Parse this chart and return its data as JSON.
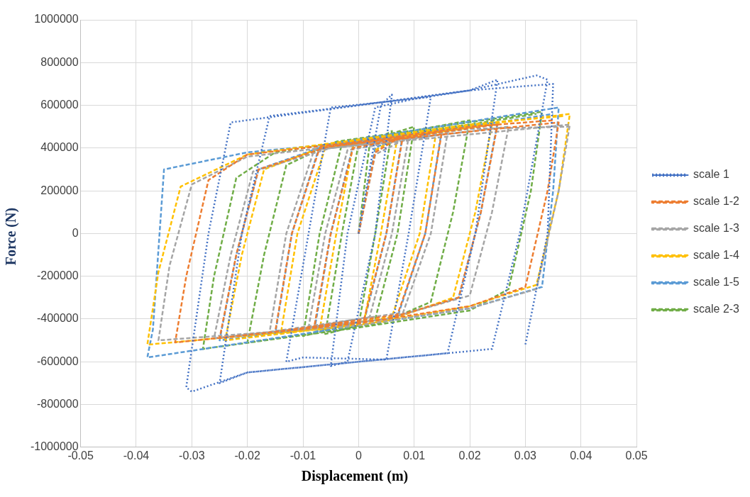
{
  "chart_data": {
    "type": "line",
    "xlabel": "Displacement (m)",
    "ylabel": "Force (N)",
    "xlim": [
      -0.05,
      0.05
    ],
    "xticks": [
      -0.05,
      -0.04,
      -0.03,
      -0.02,
      -0.01,
      0,
      0.01,
      0.02,
      0.03,
      0.04,
      0.05
    ],
    "ylim": [
      -1000000,
      1000000
    ],
    "yticks": [
      -1000000,
      -800000,
      -600000,
      -400000,
      -200000,
      0,
      200000,
      400000,
      600000,
      800000,
      1000000
    ],
    "grid": true,
    "legend": "right",
    "marker": "none",
    "series": [
      {
        "name": "scale 1",
        "color": "#4472c4",
        "line_style": "dotted",
        "x": [
          0,
          0.004,
          0.006,
          0.003,
          -0.002,
          -0.005,
          -0.002,
          0.003,
          0.01,
          0.013,
          0.009,
          0.005,
          -0.01,
          -0.013,
          -0.009,
          -0.005,
          0.01,
          0.02,
          0.025,
          0.021,
          0.016,
          0,
          -0.02,
          -0.025,
          -0.021,
          -0.016,
          0,
          0.02,
          0.032,
          0.034,
          0.029,
          0.024,
          0,
          -0.02,
          -0.03,
          -0.031,
          -0.027,
          -0.023,
          0,
          0.02,
          0.035,
          0.034,
          0.03
        ],
        "values": [
          0,
          600000,
          650000,
          0,
          -600000,
          -620000,
          0,
          590000,
          630000,
          640000,
          0,
          -590000,
          -580000,
          -600000,
          0,
          590000,
          630000,
          670000,
          720000,
          0,
          -560000,
          -600000,
          -650000,
          -700000,
          0,
          550000,
          600000,
          670000,
          740000,
          720000,
          0,
          -540000,
          -600000,
          -650000,
          -740000,
          -720000,
          0,
          520000,
          600000,
          670000,
          700000,
          0,
          -520000
        ]
      },
      {
        "name": "scale 1-2",
        "color": "#ed7d31",
        "line_style": "dashed",
        "x": [
          0,
          0.003,
          0.008,
          0.005,
          0.001,
          -0.008,
          -0.005,
          -0.001,
          0.015,
          0.012,
          0.007,
          -0.015,
          -0.012,
          -0.007,
          0.025,
          0.022,
          0.018,
          0.005,
          -0.025,
          -0.022,
          -0.018,
          -0.005,
          0.036,
          0.034,
          0.03,
          0.02,
          0,
          -0.033,
          -0.031,
          -0.027,
          -0.02,
          0,
          0.02,
          0.035
        ],
        "values": [
          0,
          380000,
          460000,
          0,
          -400000,
          -440000,
          0,
          400000,
          480000,
          0,
          -380000,
          -460000,
          0,
          400000,
          510000,
          100000,
          -300000,
          -400000,
          -490000,
          -100000,
          300000,
          410000,
          520000,
          200000,
          -250000,
          -340000,
          -420000,
          -510000,
          -200000,
          250000,
          370000,
          430000,
          500000,
          530000
        ]
      },
      {
        "name": "scale 1-3",
        "color": "#a5a5a5",
        "line_style": "dashed",
        "x": [
          0,
          0.003,
          0.009,
          0.006,
          0.002,
          -0.009,
          -0.006,
          -0.002,
          0.016,
          0.013,
          0.008,
          -0.016,
          -0.013,
          -0.008,
          0.027,
          0.024,
          0.02,
          0.005,
          -0.026,
          -0.023,
          -0.019,
          -0.005,
          0.038,
          0.036,
          0.032,
          0.02,
          0,
          -0.036,
          -0.034,
          -0.03,
          -0.02,
          0,
          0.02,
          0.038
        ],
        "values": [
          0,
          370000,
          450000,
          0,
          -390000,
          -440000,
          0,
          390000,
          470000,
          0,
          -370000,
          -460000,
          0,
          390000,
          500000,
          100000,
          -290000,
          -400000,
          -490000,
          -100000,
          290000,
          400000,
          510000,
          200000,
          -260000,
          -350000,
          -430000,
          -500000,
          -150000,
          230000,
          360000,
          420000,
          490000,
          500000
        ]
      },
      {
        "name": "scale 1-4",
        "color": "#ffc000",
        "line_style": "dashed",
        "x": [
          0.003,
          0.007,
          0.004,
          0.001,
          -0.007,
          -0.004,
          -0.001,
          0.014,
          0.011,
          0.006,
          -0.014,
          -0.011,
          -0.006,
          0.024,
          0.021,
          0.017,
          0.005,
          -0.024,
          -0.021,
          -0.017,
          -0.005,
          0.038,
          0.036,
          0.032,
          0.02,
          0,
          -0.038,
          -0.036,
          -0.032,
          -0.02,
          0,
          0.02,
          0.037
        ],
        "values": [
          390000,
          450000,
          0,
          -410000,
          -450000,
          0,
          410000,
          480000,
          0,
          -390000,
          -470000,
          0,
          400000,
          510000,
          100000,
          -300000,
          -410000,
          -500000,
          -100000,
          300000,
          420000,
          560000,
          200000,
          -240000,
          -340000,
          -430000,
          -520000,
          -180000,
          220000,
          370000,
          440000,
          510000,
          550000
        ]
      },
      {
        "name": "scale 1-5",
        "color": "#5b9bd5",
        "line_style": "dashed",
        "x": [
          0,
          0.003,
          0.008,
          0.005,
          0.001,
          -0.008,
          -0.005,
          -0.001,
          0.015,
          0.012,
          0.007,
          -0.015,
          -0.012,
          -0.007,
          0.025,
          0.022,
          0.018,
          0.005,
          -0.025,
          -0.022,
          -0.018,
          -0.005,
          0.036,
          0.035,
          0.033,
          0.02,
          0,
          -0.038,
          -0.037,
          -0.035,
          -0.02,
          0,
          0.02,
          0.035
        ],
        "values": [
          0,
          400000,
          470000,
          0,
          -410000,
          -460000,
          0,
          410000,
          490000,
          0,
          -390000,
          -470000,
          0,
          410000,
          520000,
          100000,
          -300000,
          -400000,
          -500000,
          -100000,
          300000,
          420000,
          590000,
          200000,
          -250000,
          -350000,
          -430000,
          -580000,
          -450000,
          300000,
          380000,
          430000,
          500000,
          560000
        ]
      },
      {
        "name": "scale 2-3",
        "color": "#70ad47",
        "line_style": "dashed",
        "x": [
          0,
          0.002,
          0.006,
          0.003,
          0,
          -0.006,
          -0.003,
          0,
          0.01,
          0.007,
          0.003,
          -0.01,
          -0.007,
          -0.003,
          0.02,
          0.017,
          0.013,
          0.004,
          -0.02,
          -0.017,
          -0.013,
          -0.004,
          0.033,
          0.031,
          0.027,
          0.02,
          0,
          -0.028,
          -0.026,
          -0.022,
          -0.015,
          0,
          0.02,
          0.032
        ],
        "values": [
          0,
          420000,
          480000,
          0,
          -430000,
          -470000,
          0,
          420000,
          500000,
          0,
          -400000,
          -480000,
          0,
          420000,
          530000,
          100000,
          -320000,
          -420000,
          -510000,
          -100000,
          320000,
          430000,
          570000,
          200000,
          -260000,
          -360000,
          -440000,
          -540000,
          -200000,
          260000,
          380000,
          440000,
          510000,
          560000
        ]
      }
    ]
  }
}
